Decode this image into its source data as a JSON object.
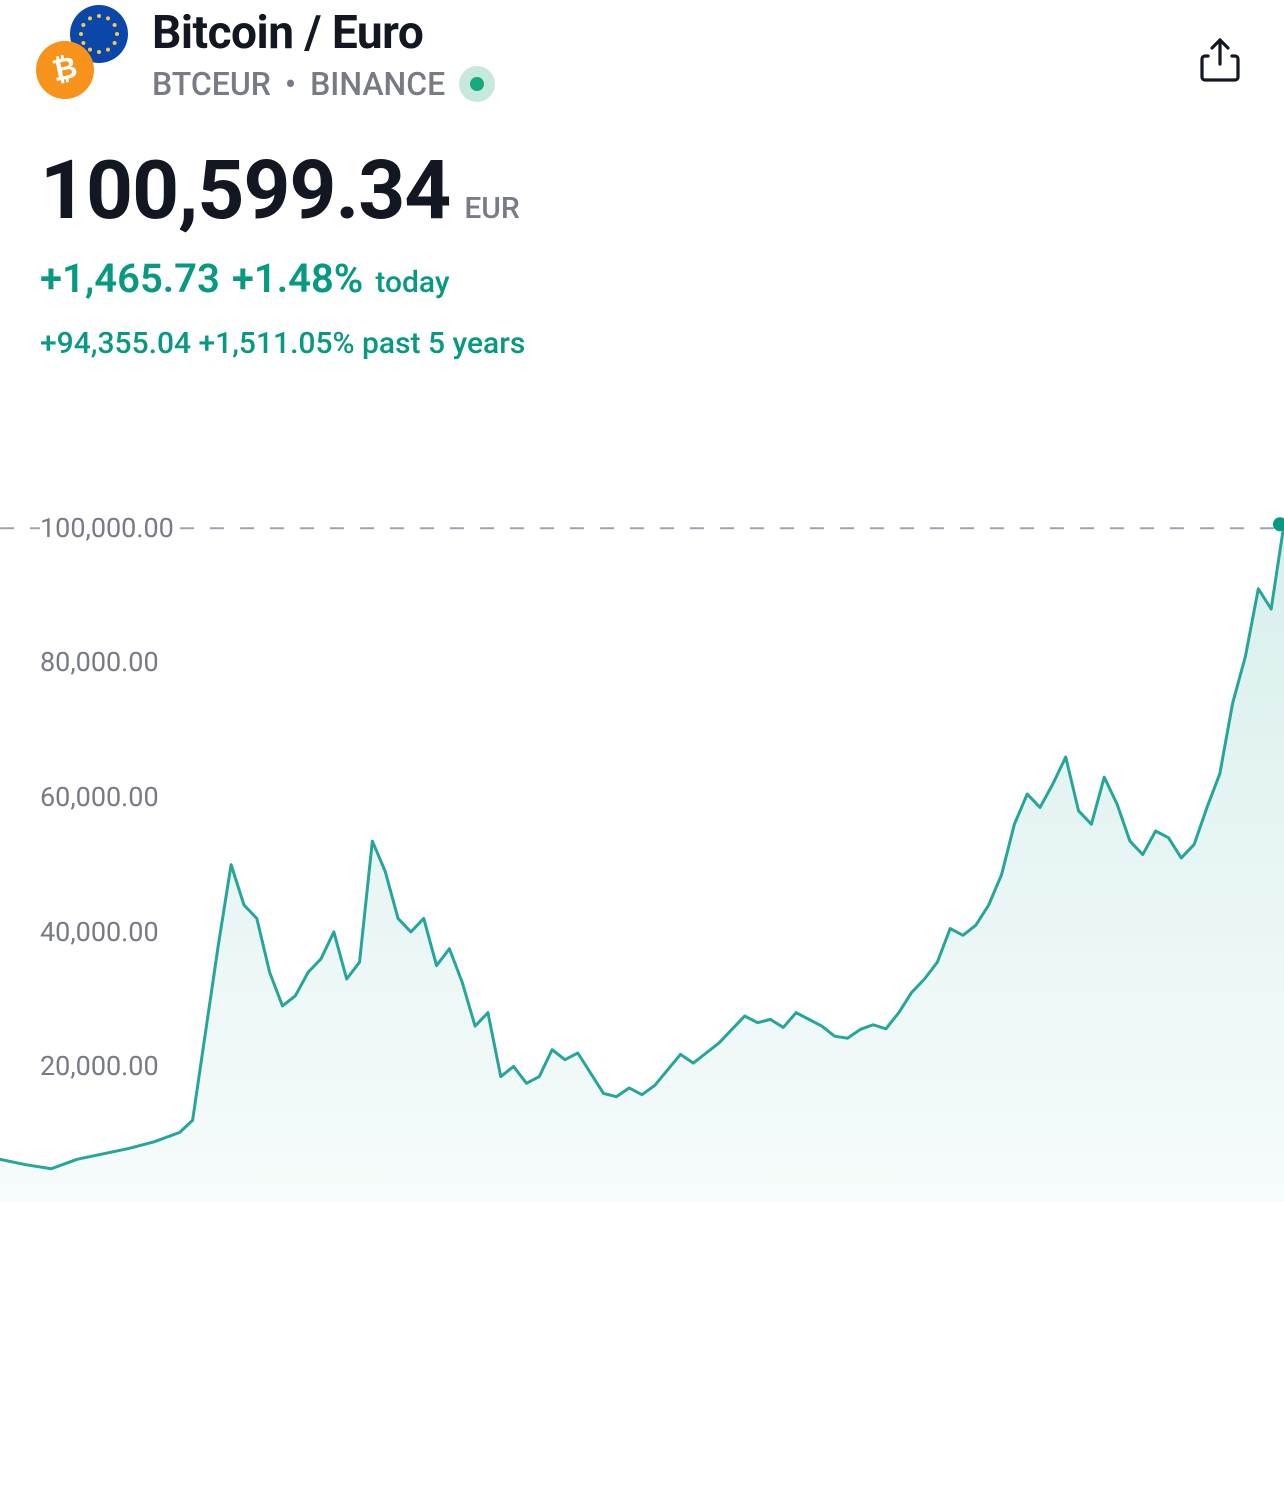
{
  "header": {
    "title": "Bitcoin / Euro",
    "ticker": "BTCEUR",
    "exchange": "BINANCE",
    "btc_glyph": "₿",
    "btc_color": "#f7931a",
    "euro_color": "#0a47a9",
    "status_color": "#14a97f",
    "status_bg": "#c7e8dc"
  },
  "price": {
    "value": "100,599.34",
    "currency": "EUR",
    "change_abs": "+1,465.73",
    "change_pct": "+1.48%",
    "change_period": "today",
    "change_5y_text": "+94,355.04 +1,511.05% past 5 years",
    "positive_color": "#089981"
  },
  "chart": {
    "type": "area",
    "line_color": "#26a69a",
    "fill_color_top": "rgba(38,166,154,0.18)",
    "fill_color_bottom": "rgba(38,166,154,0.04)",
    "background_color": "#ffffff",
    "line_width": 3,
    "endpoint_dot_color": "#089981",
    "endpoint_dot_radius": 7,
    "grid_dash_color": "#9ca3af",
    "y_label_color": "#787b86",
    "y_label_fontsize": 27,
    "ylim": [
      0,
      110000
    ],
    "y_ticks": [
      20000,
      40000,
      60000,
      80000,
      100000
    ],
    "y_tick_labels": [
      "20,000.00",
      "40,000.00",
      "60,000.00",
      "80,000.00",
      "100,000.00"
    ],
    "dashed_line_value": 100000,
    "x_range_pct": [
      0,
      100
    ],
    "series": [
      [
        0,
        6200
      ],
      [
        2,
        5400
      ],
      [
        4,
        4800
      ],
      [
        6,
        6200
      ],
      [
        8,
        7000
      ],
      [
        10,
        7800
      ],
      [
        12,
        8800
      ],
      [
        14,
        10200
      ],
      [
        15,
        12000
      ],
      [
        16,
        25000
      ],
      [
        17,
        38000
      ],
      [
        18,
        50000
      ],
      [
        19,
        44000
      ],
      [
        20,
        42000
      ],
      [
        21,
        34000
      ],
      [
        22,
        29000
      ],
      [
        23,
        30500
      ],
      [
        24,
        34000
      ],
      [
        25,
        36000
      ],
      [
        26,
        40000
      ],
      [
        27,
        33000
      ],
      [
        28,
        35500
      ],
      [
        29,
        53500
      ],
      [
        30,
        49000
      ],
      [
        31,
        42000
      ],
      [
        32,
        40000
      ],
      [
        33,
        42000
      ],
      [
        34,
        35000
      ],
      [
        35,
        37500
      ],
      [
        36,
        32500
      ],
      [
        37,
        26000
      ],
      [
        38,
        28000
      ],
      [
        39,
        18500
      ],
      [
        40,
        20000
      ],
      [
        41,
        17500
      ],
      [
        42,
        18500
      ],
      [
        43,
        22500
      ],
      [
        44,
        21000
      ],
      [
        45,
        22000
      ],
      [
        46,
        19000
      ],
      [
        47,
        16000
      ],
      [
        48,
        15500
      ],
      [
        49,
        16800
      ],
      [
        50,
        15800
      ],
      [
        51,
        17200
      ],
      [
        52,
        19500
      ],
      [
        53,
        21800
      ],
      [
        54,
        20500
      ],
      [
        55,
        22000
      ],
      [
        56,
        23500
      ],
      [
        57,
        25500
      ],
      [
        58,
        27500
      ],
      [
        59,
        26500
      ],
      [
        60,
        27000
      ],
      [
        61,
        25800
      ],
      [
        62,
        28000
      ],
      [
        63,
        27000
      ],
      [
        64,
        26000
      ],
      [
        65,
        24500
      ],
      [
        66,
        24200
      ],
      [
        67,
        25500
      ],
      [
        68,
        26200
      ],
      [
        69,
        25600
      ],
      [
        70,
        28000
      ],
      [
        71,
        31000
      ],
      [
        72,
        33000
      ],
      [
        73,
        35500
      ],
      [
        74,
        40500
      ],
      [
        75,
        39500
      ],
      [
        76,
        41000
      ],
      [
        77,
        44000
      ],
      [
        78,
        48500
      ],
      [
        79,
        56000
      ],
      [
        80,
        60500
      ],
      [
        81,
        58500
      ],
      [
        82,
        62000
      ],
      [
        83,
        66000
      ],
      [
        84,
        58000
      ],
      [
        85,
        56000
      ],
      [
        86,
        63000
      ],
      [
        87,
        59000
      ],
      [
        88,
        53500
      ],
      [
        89,
        51500
      ],
      [
        90,
        55000
      ],
      [
        91,
        54000
      ],
      [
        92,
        51000
      ],
      [
        93,
        53000
      ],
      [
        94,
        58500
      ],
      [
        95,
        63500
      ],
      [
        96,
        74000
      ],
      [
        97,
        81000
      ],
      [
        98,
        91000
      ],
      [
        99,
        88000
      ],
      [
        100,
        100599
      ]
    ]
  }
}
